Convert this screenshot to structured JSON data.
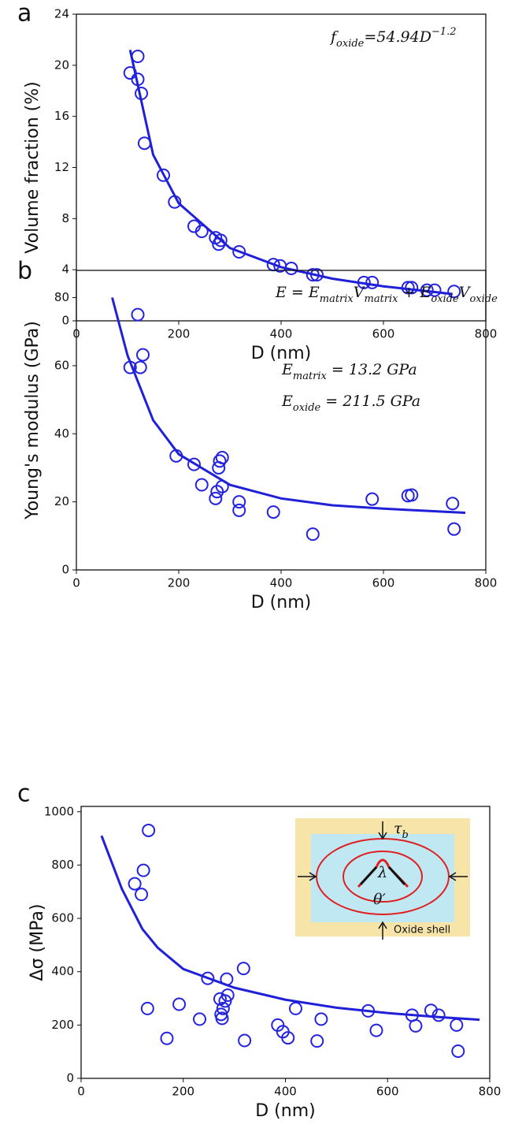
{
  "chart_data": [
    {
      "type": "scatter",
      "label": "a",
      "xlabel": "D (nm)",
      "ylabel": "Volume fraction (%)",
      "xlim": [
        0,
        800
      ],
      "ylim": [
        0,
        24
      ],
      "xticks": [
        0,
        200,
        400,
        600,
        800
      ],
      "yticks": [
        0,
        4,
        8,
        12,
        16,
        20,
        24
      ],
      "annotations": [
        [
          "f",
          {
            "sub": "oxide"
          },
          "=54.94D",
          {
            "sup": "−1.2"
          }
        ]
      ],
      "series": [
        {
          "type": "scatter",
          "color": "#2424e0",
          "x": [
            105,
            120,
            120,
            127,
            133,
            170,
            192,
            230,
            245,
            272,
            278,
            282,
            318,
            385,
            398,
            420,
            462,
            470,
            562,
            578,
            648,
            655,
            685,
            700,
            738
          ],
          "values": [
            19.4,
            20.7,
            18.9,
            17.8,
            13.9,
            11.4,
            9.3,
            7.4,
            7.0,
            6.5,
            6.0,
            6.3,
            5.4,
            4.4,
            4.3,
            4.1,
            3.6,
            3.6,
            3.0,
            3.0,
            2.6,
            2.6,
            2.4,
            2.4,
            2.3
          ]
        },
        {
          "type": "line",
          "color": "#2020d8",
          "x": [
            105,
            150,
            200,
            300,
            400,
            500,
            600,
            735
          ],
          "values": [
            21.2,
            13.0,
            9.2,
            5.7,
            4.2,
            3.3,
            2.7,
            2.1
          ]
        }
      ]
    },
    {
      "type": "scatter",
      "label": "b",
      "xlabel": "D (nm)",
      "ylabel": "Young's modulus (GPa)",
      "xlim": [
        0,
        800
      ],
      "ylim": [
        0,
        88
      ],
      "xticks": [
        0,
        200,
        400,
        600,
        800
      ],
      "yticks": [
        0,
        20,
        40,
        60,
        80
      ],
      "annotations": [
        [
          "E = E",
          {
            "sub": "matrix"
          },
          "V",
          {
            "sub": "matrix"
          },
          " + E",
          {
            "sub": "oxide"
          },
          "V",
          {
            "sub": "oxide"
          }
        ],
        [
          "E",
          {
            "sub": "matrix"
          },
          " = 13.2 GPa"
        ],
        [
          "E",
          {
            "sub": "oxide"
          },
          " = 211.5 GPa"
        ]
      ],
      "series": [
        {
          "type": "scatter",
          "color": "#2424e0",
          "x": [
            105,
            120,
            125,
            130,
            195,
            230,
            245,
            272,
            275,
            278,
            280,
            285,
            285,
            318,
            318,
            385,
            462,
            578,
            648,
            655,
            735,
            738
          ],
          "values": [
            59.5,
            75,
            59.5,
            63.2,
            33.5,
            31,
            25,
            21,
            23,
            30,
            32,
            33,
            24.5,
            20,
            17.5,
            17,
            10.5,
            20.8,
            21.8,
            22,
            19.5,
            12
          ]
        },
        {
          "type": "line",
          "color": "#2020d8",
          "x": [
            70,
            100,
            150,
            200,
            300,
            400,
            500,
            600,
            760
          ],
          "values": [
            80,
            63,
            44,
            34,
            25,
            21,
            19,
            18,
            16.8
          ]
        }
      ]
    },
    {
      "type": "scatter",
      "label": "c",
      "xlabel": "D (nm)",
      "ylabel": "Δσ (MPa)",
      "xlim": [
        0,
        800
      ],
      "ylim": [
        0,
        1020
      ],
      "xticks": [
        0,
        200,
        400,
        600,
        800
      ],
      "yticks": [
        0,
        200,
        400,
        600,
        800,
        1000
      ],
      "inset": {
        "tau": [
          "τ",
          {
            "sub": "b"
          }
        ],
        "lambda": "λ",
        "theta": "θ′",
        "shell": "Oxide shell"
      },
      "series": [
        {
          "type": "scatter",
          "color": "#2424e0",
          "x": [
            105,
            118,
            122,
            130,
            132,
            168,
            192,
            232,
            248,
            272,
            274,
            276,
            278,
            282,
            285,
            287,
            318,
            320,
            385,
            395,
            405,
            420,
            462,
            470,
            562,
            578,
            648,
            655,
            685,
            700,
            735,
            738
          ],
          "values": [
            730,
            690,
            780,
            262,
            930,
            150,
            278,
            222,
            375,
            298,
            240,
            225,
            262,
            290,
            372,
            312,
            412,
            142,
            200,
            175,
            152,
            262,
            140,
            222,
            253,
            180,
            237,
            197,
            255,
            237,
            200,
            102
          ]
        },
        {
          "type": "line",
          "color": "#2020d8",
          "x": [
            40,
            80,
            120,
            150,
            200,
            300,
            400,
            500,
            600,
            700,
            780
          ],
          "values": [
            910,
            710,
            560,
            490,
            410,
            340,
            295,
            265,
            245,
            230,
            220
          ]
        }
      ]
    }
  ]
}
